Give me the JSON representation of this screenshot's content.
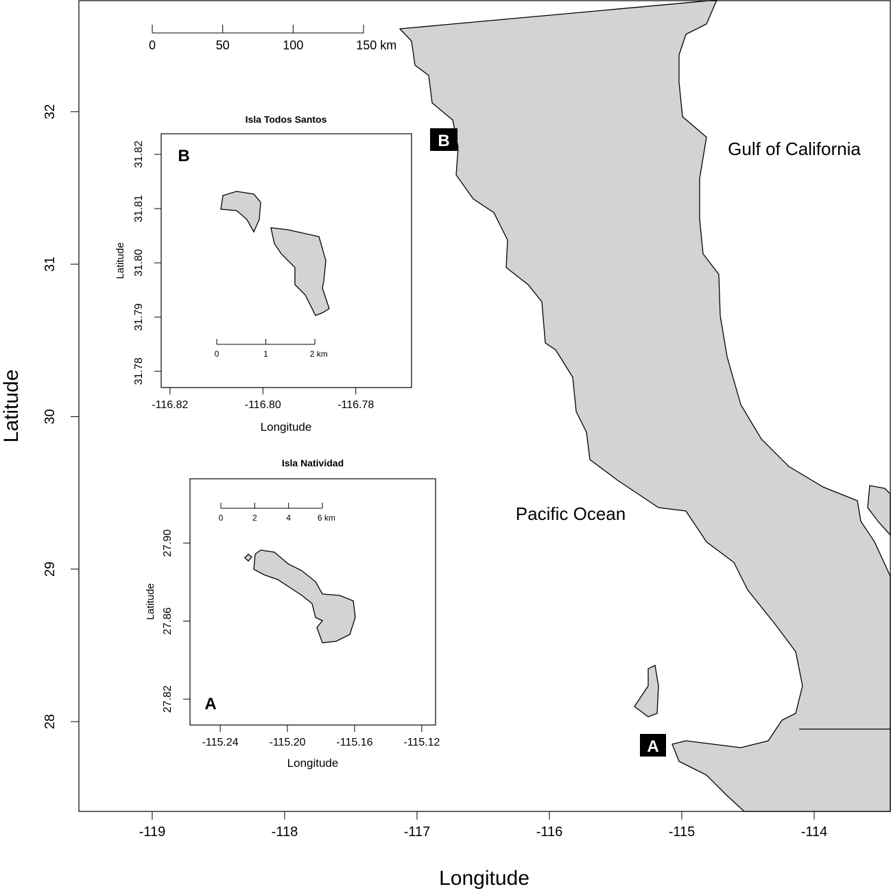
{
  "main_map": {
    "xlabel": "Longitude",
    "ylabel": "Latitude",
    "xlim": [
      -119.554,
      -113.425
    ],
    "ylim": [
      27.411,
      32.728
    ],
    "xticks": [
      -119,
      -118,
      -117,
      -116,
      -115,
      -114
    ],
    "yticks": [
      28,
      29,
      30,
      31,
      32
    ],
    "scale_bar": {
      "ticks": [
        0,
        50,
        100,
        {
          "value": 150,
          "label": "150 km"
        }
      ]
    },
    "labels": [
      "Gulf of California",
      "Pacific Ocean"
    ],
    "site_markers": [
      "B",
      "A"
    ]
  },
  "insets": [
    {
      "title": "Isla Todos Santos",
      "panel": "B",
      "xlabel": "Longitude",
      "ylabel": "Latitude",
      "xlim": [
        -116.8219,
        -116.768
      ],
      "ylim": [
        31.777,
        31.8238
      ],
      "xticks": [
        -116.82,
        {
          "value": -116.8,
          "label": "-116.80"
        },
        -116.78
      ],
      "yticks": [
        31.78,
        31.79,
        {
          "value": 31.8,
          "label": "31.80"
        },
        31.81,
        31.82
      ],
      "scale_bar": {
        "ticks": [
          0,
          1,
          {
            "value": 2,
            "label": "2 km"
          }
        ]
      }
    },
    {
      "title": "Isla Natividad",
      "panel": "A",
      "xlabel": "Longitude",
      "ylabel": "Latitude",
      "xlim": [
        -115.258,
        -115.1118
      ],
      "ylim": [
        27.8067,
        27.933
      ],
      "xticks": [
        -115.24,
        {
          "value": -115.2,
          "label": "-115.20"
        },
        -115.16,
        -115.12
      ],
      "yticks": [
        27.82,
        27.86,
        {
          "value": 27.9,
          "label": "27.90"
        }
      ],
      "scale_bar": {
        "ticks": [
          0,
          2,
          4,
          {
            "value": 6,
            "label": "6 km"
          }
        ]
      }
    }
  ]
}
